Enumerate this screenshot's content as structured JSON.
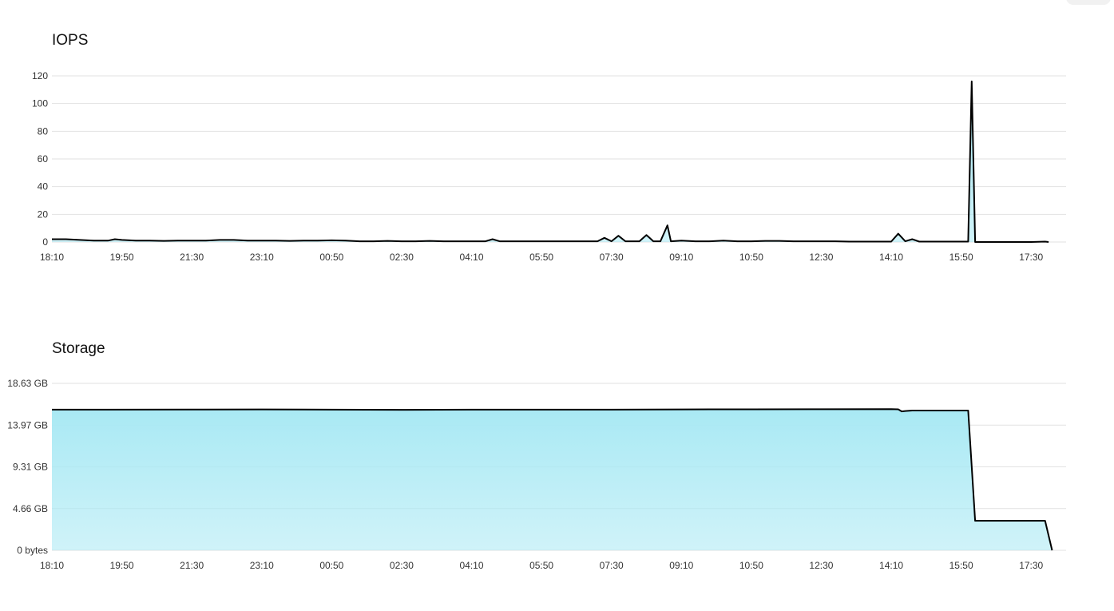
{
  "charts": [
    {
      "id": "iops",
      "title": "IOPS",
      "chart_data": {
        "type": "line",
        "title": "IOPS",
        "x_tick_labels": [
          "18:10",
          "19:50",
          "21:30",
          "23:10",
          "00:50",
          "02:30",
          "04:10",
          "05:50",
          "07:30",
          "09:10",
          "10:50",
          "12:30",
          "14:10",
          "15:50",
          "17:30"
        ],
        "y_tick_labels": [
          "0",
          "20",
          "40",
          "60",
          "80",
          "100",
          "120"
        ],
        "ylim": [
          0,
          120
        ],
        "grid": true,
        "series": [
          {
            "color": "#000000",
            "fill": "#a9e9f4",
            "points": [
              [
                "18:10",
                2
              ],
              [
                "18:30",
                2
              ],
              [
                "18:50",
                1.5
              ],
              [
                "19:10",
                1
              ],
              [
                "19:30",
                1
              ],
              [
                "19:40",
                2
              ],
              [
                "19:50",
                1.5
              ],
              [
                "20:10",
                1
              ],
              [
                "20:30",
                1
              ],
              [
                "20:50",
                0.8
              ],
              [
                "21:10",
                1
              ],
              [
                "21:30",
                1
              ],
              [
                "21:50",
                1
              ],
              [
                "22:10",
                1.5
              ],
              [
                "22:30",
                1.5
              ],
              [
                "22:50",
                1
              ],
              [
                "23:10",
                1
              ],
              [
                "23:30",
                1
              ],
              [
                "23:50",
                0.8
              ],
              [
                "00:10",
                1
              ],
              [
                "00:30",
                1
              ],
              [
                "00:50",
                1.2
              ],
              [
                "01:10",
                1
              ],
              [
                "01:30",
                0.5
              ],
              [
                "01:50",
                0.5
              ],
              [
                "02:10",
                0.8
              ],
              [
                "02:30",
                0.5
              ],
              [
                "02:50",
                0.5
              ],
              [
                "03:10",
                0.8
              ],
              [
                "03:30",
                0.5
              ],
              [
                "03:50",
                0.5
              ],
              [
                "04:10",
                0.5
              ],
              [
                "04:30",
                0.5
              ],
              [
                "04:40",
                2
              ],
              [
                "04:50",
                0.5
              ],
              [
                "05:10",
                0.5
              ],
              [
                "05:30",
                0.5
              ],
              [
                "05:50",
                0.5
              ],
              [
                "06:10",
                0.5
              ],
              [
                "06:30",
                0.5
              ],
              [
                "06:50",
                0.5
              ],
              [
                "07:10",
                0.5
              ],
              [
                "07:20",
                3
              ],
              [
                "07:30",
                0.5
              ],
              [
                "07:40",
                4.5
              ],
              [
                "07:50",
                0.5
              ],
              [
                "08:10",
                0.5
              ],
              [
                "08:20",
                5
              ],
              [
                "08:30",
                0.5
              ],
              [
                "08:40",
                0.5
              ],
              [
                "08:50",
                12
              ],
              [
                "08:55",
                0.5
              ],
              [
                "09:10",
                1
              ],
              [
                "09:30",
                0.5
              ],
              [
                "09:50",
                0.5
              ],
              [
                "10:10",
                1
              ],
              [
                "10:30",
                0.5
              ],
              [
                "10:50",
                0.5
              ],
              [
                "11:10",
                0.8
              ],
              [
                "11:30",
                0.8
              ],
              [
                "11:50",
                0.5
              ],
              [
                "12:10",
                0.5
              ],
              [
                "12:30",
                0.5
              ],
              [
                "12:50",
                0.5
              ],
              [
                "13:10",
                0.3
              ],
              [
                "13:30",
                0.3
              ],
              [
                "13:50",
                0.3
              ],
              [
                "14:10",
                0.3
              ],
              [
                "14:20",
                6
              ],
              [
                "14:30",
                0.5
              ],
              [
                "14:40",
                2
              ],
              [
                "14:50",
                0.3
              ],
              [
                "15:10",
                0.3
              ],
              [
                "15:30",
                0.3
              ],
              [
                "15:50",
                0.3
              ],
              [
                "16:00",
                0.3
              ],
              [
                "16:05",
                116
              ],
              [
                "16:10",
                0
              ],
              [
                "16:30",
                0
              ],
              [
                "17:00",
                0
              ],
              [
                "17:30",
                0
              ],
              [
                "17:50",
                0.3
              ],
              [
                "17:55",
                0
              ]
            ]
          }
        ]
      }
    },
    {
      "id": "storage",
      "title": "Storage",
      "chart_data": {
        "type": "area",
        "title": "Storage",
        "x_tick_labels": [
          "18:10",
          "19:50",
          "21:30",
          "23:10",
          "00:50",
          "02:30",
          "04:10",
          "05:50",
          "07:30",
          "09:10",
          "10:50",
          "12:30",
          "14:10",
          "15:50",
          "17:30"
        ],
        "y_tick_labels": [
          "0 bytes",
          "4.66 GB",
          "9.31 GB",
          "13.97 GB",
          "18.63 GB"
        ],
        "y_unit": "GB",
        "ylim": [
          0,
          18.63
        ],
        "grid": true,
        "series": [
          {
            "color": "#000000",
            "fill": "#a9e9f4",
            "points": [
              [
                "18:10",
                15.7
              ],
              [
                "19:30",
                15.7
              ],
              [
                "21:30",
                15.71
              ],
              [
                "23:10",
                15.72
              ],
              [
                "00:50",
                15.7
              ],
              [
                "02:30",
                15.68
              ],
              [
                "04:10",
                15.7
              ],
              [
                "05:50",
                15.7
              ],
              [
                "07:30",
                15.7
              ],
              [
                "09:10",
                15.72
              ],
              [
                "10:50",
                15.73
              ],
              [
                "12:30",
                15.74
              ],
              [
                "14:10",
                15.75
              ],
              [
                "14:20",
                15.73
              ],
              [
                "14:25",
                15.5
              ],
              [
                "14:30",
                15.55
              ],
              [
                "14:40",
                15.6
              ],
              [
                "15:50",
                15.6
              ],
              [
                "16:00",
                15.6
              ],
              [
                "16:10",
                3.3
              ],
              [
                "17:00",
                3.3
              ],
              [
                "17:30",
                3.3
              ],
              [
                "17:50",
                3.3
              ],
              [
                "18:00",
                0
              ]
            ]
          }
        ]
      }
    }
  ]
}
